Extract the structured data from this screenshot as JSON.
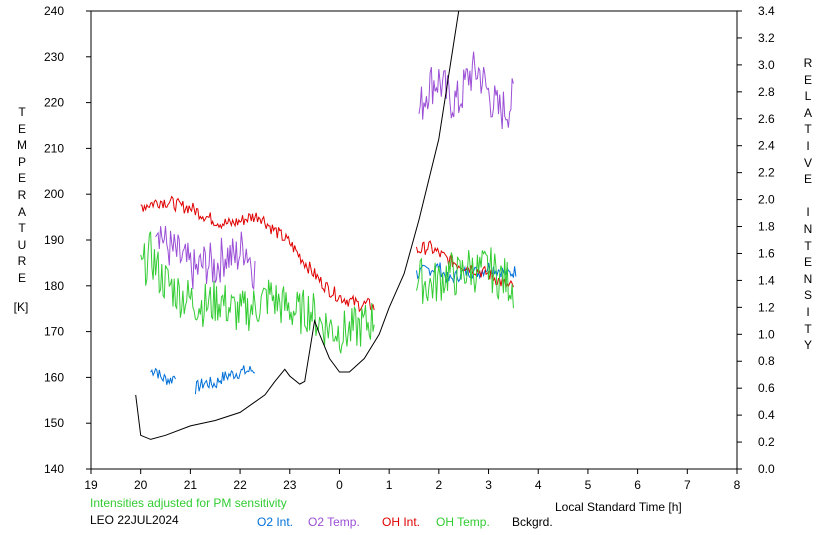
{
  "chart_data": {
    "type": "line",
    "station_date": "LEO 22JUL2024",
    "note": "Intensities adjusted for PM sensitivity",
    "xlabel": "Local Standard Time [h]",
    "ylabel_left": "TEMPERATURE",
    "ylabel_left_unit": "[K]",
    "ylabel_right": "RELATIVE INTENSITY",
    "x_ticks": [
      "19",
      "20",
      "21",
      "22",
      "23",
      "0",
      "1",
      "2",
      "3",
      "4",
      "5",
      "6",
      "7",
      "8"
    ],
    "xlim": [
      19,
      32
    ],
    "ylim_left": [
      140,
      240
    ],
    "y_ticks_left": [
      "140",
      "150",
      "160",
      "170",
      "180",
      "190",
      "200",
      "210",
      "220",
      "230",
      "240"
    ],
    "ylim_right": [
      0.0,
      3.4
    ],
    "y_ticks_right": [
      "0.0",
      "0.2",
      "0.4",
      "0.6",
      "0.8",
      "1.0",
      "1.2",
      "1.4",
      "1.6",
      "1.8",
      "2.0",
      "2.2",
      "2.4",
      "2.6",
      "2.8",
      "3.0",
      "3.2",
      "3.4"
    ],
    "grid": false,
    "legend_position": "bottom",
    "series": [
      {
        "name": "O2 Int.",
        "color": "#0070d8",
        "axis": "right",
        "style": "noisy",
        "segments": [
          {
            "x": [
              20.2,
              20.3,
              20.4,
              20.6,
              20.7
            ],
            "y": [
              0.72,
              0.75,
              0.68,
              0.66,
              0.7
            ]
          },
          {
            "x": [
              21.1,
              21.3,
              21.5,
              21.6,
              21.8,
              22.0,
              22.2,
              22.3
            ],
            "y": [
              0.6,
              0.64,
              0.63,
              0.67,
              0.7,
              0.72,
              0.73,
              0.74
            ]
          },
          {
            "x": [
              25.55,
              25.8,
              26.0,
              26.2,
              26.4,
              26.6,
              26.8,
              27.0,
              27.2,
              27.4,
              27.55
            ],
            "y": [
              1.45,
              1.48,
              1.5,
              1.4,
              1.44,
              1.47,
              1.46,
              1.5,
              1.48,
              1.45,
              1.47
            ]
          }
        ]
      },
      {
        "name": "O2 Temp.",
        "color": "#9b4fd6",
        "axis": "left",
        "style": "noisy",
        "segments": [
          {
            "x": [
              20.3,
              20.5,
              20.7,
              20.9,
              21.1,
              21.3,
              21.5,
              21.7,
              21.9,
              22.1,
              22.3
            ],
            "y": [
              195,
              189,
              187,
              185,
              183,
              185,
              184,
              187,
              186,
              189,
              183
            ]
          },
          {
            "x": [
              25.6,
              25.8,
              26.0,
              26.2,
              26.4,
              26.6,
              26.8,
              27.0,
              27.2,
              27.4,
              27.5
            ],
            "y": [
              218,
              224,
              225,
              221,
              220,
              226,
              227,
              222,
              218,
              219,
              221
            ]
          }
        ]
      },
      {
        "name": "OH Int.",
        "color": "#e00000",
        "axis": "right",
        "style": "noisy",
        "segments": [
          {
            "x": [
              20.0,
              20.2,
              20.4,
              20.6,
              20.8,
              21.0,
              21.2,
              21.4,
              21.6,
              21.8,
              22.0,
              22.2,
              22.4,
              22.6,
              22.8,
              23.0,
              23.2,
              23.4,
              23.6,
              23.8,
              24.0,
              24.2,
              24.4,
              24.6,
              24.7
            ],
            "y": [
              1.95,
              1.97,
              1.99,
              1.98,
              1.95,
              1.94,
              1.9,
              1.86,
              1.83,
              1.82,
              1.84,
              1.87,
              1.88,
              1.8,
              1.74,
              1.68,
              1.58,
              1.49,
              1.4,
              1.33,
              1.28,
              1.25,
              1.22,
              1.22,
              1.2
            ]
          },
          {
            "x": [
              25.55,
              25.8,
              26.0,
              26.2,
              26.4,
              26.6,
              26.8,
              27.0,
              27.2,
              27.4,
              27.5
            ],
            "y": [
              1.62,
              1.65,
              1.6,
              1.55,
              1.52,
              1.5,
              1.47,
              1.45,
              1.4,
              1.35,
              1.36
            ]
          }
        ]
      },
      {
        "name": "OH Temp.",
        "color": "#33cc33",
        "axis": "left",
        "style": "noisy",
        "segments": [
          {
            "x": [
              20.0,
              20.2,
              20.4,
              20.6,
              20.8,
              21.0,
              21.2,
              21.4,
              21.6,
              21.8,
              22.0,
              22.2,
              22.4,
              22.6,
              22.8,
              23.0,
              23.2,
              23.4,
              23.6,
              23.8,
              24.0,
              24.2,
              24.4,
              24.6,
              24.7
            ],
            "y": [
              183,
              187,
              182,
              180,
              178,
              177,
              176,
              176,
              177,
              175,
              174,
              175,
              176,
              178,
              176,
              175,
              174,
              175,
              172,
              171,
              170,
              170,
              171,
              172,
              173
            ]
          },
          {
            "x": [
              25.55,
              25.8,
              26.0,
              26.2,
              26.4,
              26.6,
              26.8,
              27.0,
              27.2,
              27.4,
              27.5
            ],
            "y": [
              182,
              180,
              181,
              183,
              182,
              184,
              183,
              184,
              182,
              181,
              180
            ]
          }
        ]
      },
      {
        "name": "Bckgrd.",
        "color": "#000000",
        "axis": "right",
        "style": "smooth",
        "segments": [
          {
            "x": [
              19.9,
              20.0,
              20.2,
              20.5,
              21.0,
              21.5,
              22.0,
              22.5,
              22.7,
              22.9,
              23.0,
              23.2,
              23.3,
              23.5,
              23.6,
              23.8,
              24.0,
              24.2,
              24.5,
              24.8,
              25.0,
              25.3,
              25.6,
              26.0,
              26.4,
              26.6,
              26.9,
              27.1,
              27.3,
              27.5
            ],
            "y": [
              0.55,
              0.25,
              0.22,
              0.25,
              0.32,
              0.36,
              0.42,
              0.55,
              0.65,
              0.74,
              0.69,
              0.63,
              0.65,
              1.1,
              1.0,
              0.82,
              0.72,
              0.72,
              0.82,
              1.0,
              1.2,
              1.45,
              1.85,
              2.45,
              3.4,
              3.4,
              3.4,
              3.4,
              3.4,
              3.4
            ]
          }
        ]
      }
    ]
  }
}
